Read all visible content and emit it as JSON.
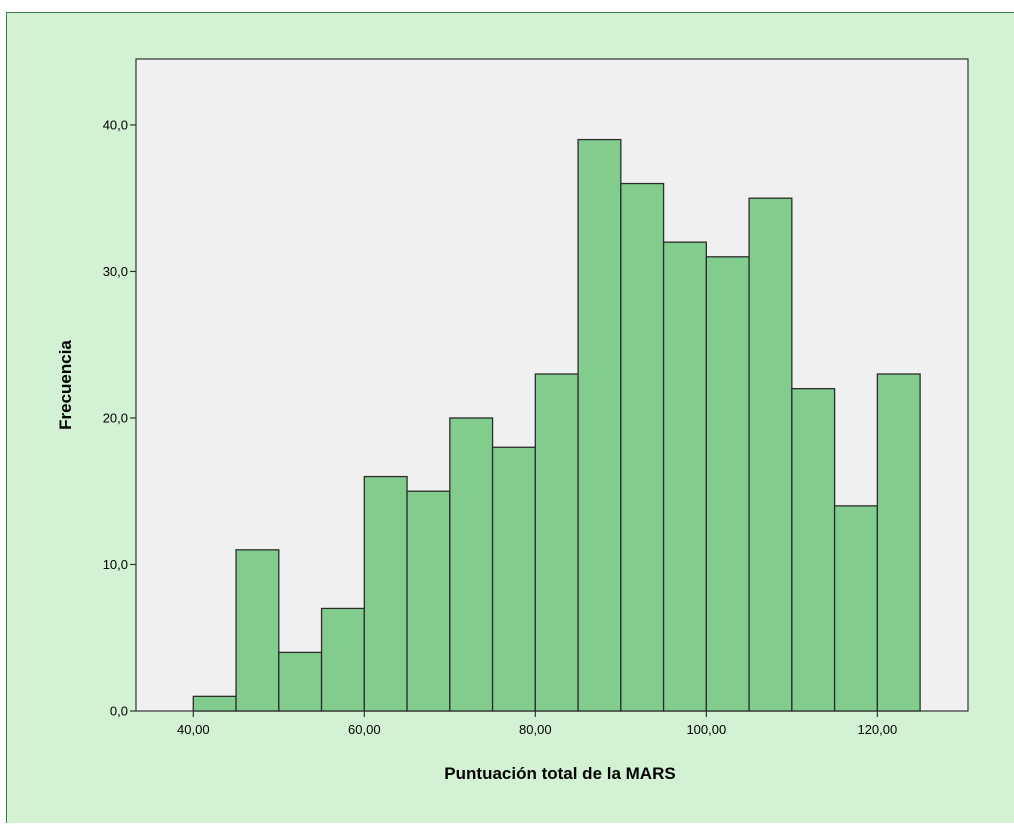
{
  "chart_data": {
    "type": "bar",
    "title": "",
    "xlabel": "Puntuación total de la MARS",
    "ylabel": "Frecuencia",
    "bin_width": 5,
    "bins": [
      {
        "start": 40,
        "end": 45,
        "value": 1
      },
      {
        "start": 45,
        "end": 50,
        "value": 11
      },
      {
        "start": 50,
        "end": 55,
        "value": 4
      },
      {
        "start": 55,
        "end": 60,
        "value": 7
      },
      {
        "start": 60,
        "end": 65,
        "value": 16
      },
      {
        "start": 65,
        "end": 70,
        "value": 15
      },
      {
        "start": 70,
        "end": 75,
        "value": 20
      },
      {
        "start": 75,
        "end": 80,
        "value": 18
      },
      {
        "start": 80,
        "end": 85,
        "value": 23
      },
      {
        "start": 85,
        "end": 90,
        "value": 39
      },
      {
        "start": 90,
        "end": 95,
        "value": 36
      },
      {
        "start": 95,
        "end": 100,
        "value": 32
      },
      {
        "start": 100,
        "end": 105,
        "value": 31
      },
      {
        "start": 105,
        "end": 110,
        "value": 35
      },
      {
        "start": 110,
        "end": 115,
        "value": 22
      },
      {
        "start": 115,
        "end": 120,
        "value": 14
      },
      {
        "start": 120,
        "end": 125,
        "value": 23
      }
    ],
    "xlim": [
      33.3,
      130.6
    ],
    "ylim": [
      0,
      44.5
    ],
    "x_ticks": [
      40,
      60,
      80,
      100,
      120
    ],
    "x_tick_labels": [
      "40,00",
      "60,00",
      "80,00",
      "100,00",
      "120,00"
    ],
    "y_ticks": [
      0,
      10,
      20,
      30,
      40
    ],
    "y_tick_labels": [
      "0,0",
      "10,0",
      "20,0",
      "30,0",
      "40,0"
    ],
    "grid": false,
    "colors": {
      "bar_fill": "#82cc8e",
      "bar_stroke": "#2c2c2c",
      "plot_background": "#f0f0f0",
      "frame_background": "#d3f2d4"
    }
  }
}
